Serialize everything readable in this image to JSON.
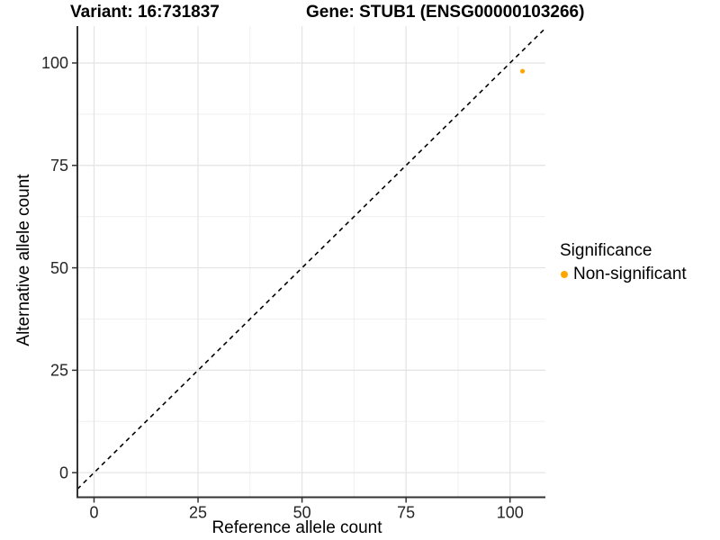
{
  "chart_data": {
    "type": "scatter",
    "title_left": "Variant: 16:731837",
    "title_right": "Gene: STUB1 (ENSG00000103266)",
    "xlabel": "Reference allele count",
    "ylabel": "Alternative allele count",
    "xlim": [
      -4,
      108.5
    ],
    "ylim": [
      -6,
      109
    ],
    "x_ticks": [
      0,
      25,
      50,
      75,
      100
    ],
    "y_ticks": [
      0,
      25,
      50,
      75,
      100
    ],
    "minor_grid_step": 12.5,
    "grid": true,
    "legend_title": "Significance",
    "legend_position": "right",
    "series": [
      {
        "name": "Non-significant",
        "color": "#FFA500",
        "point_radius": 2.6,
        "points": [
          [
            103,
            98
          ]
        ]
      }
    ],
    "reference_line": {
      "kind": "identity",
      "equation": "y = x",
      "style": "dashed",
      "color": "#000000"
    },
    "colors": {
      "background": "#FFFFFF",
      "grid_major": "#e3e3e3",
      "grid_minor": "#efefef",
      "axis_line": "#333333",
      "tick_mark": "#333333",
      "tick_text": "#262626"
    }
  }
}
